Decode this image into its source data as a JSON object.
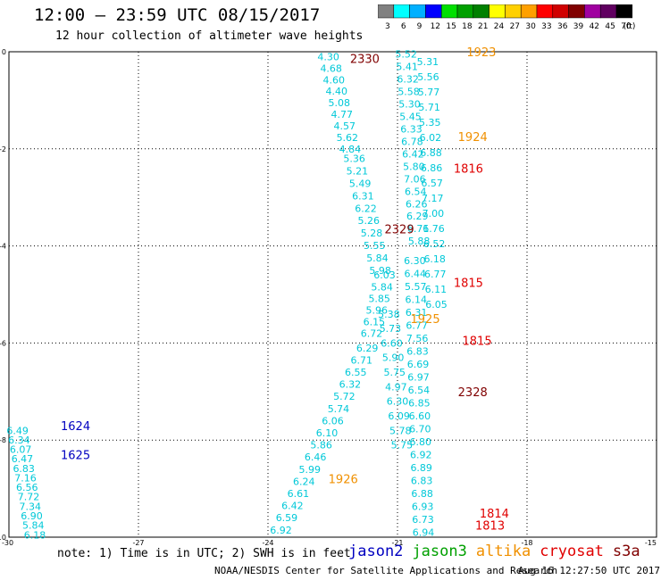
{
  "header": {
    "title": "12:00 – 23:59 UTC 08/15/2017",
    "subtitle": "12 hour collection of altimeter wave heights"
  },
  "colorbar": {
    "unit": "(ft)",
    "bins": [
      {
        "label": "3",
        "color": "#808080"
      },
      {
        "label": "6",
        "color": "#00ffff"
      },
      {
        "label": "9",
        "color": "#00b0ff"
      },
      {
        "label": "12",
        "color": "#0000ff"
      },
      {
        "label": "15",
        "color": "#00e000"
      },
      {
        "label": "18",
        "color": "#00a000"
      },
      {
        "label": "21",
        "color": "#008000"
      },
      {
        "label": "24",
        "color": "#ffff00"
      },
      {
        "label": "27",
        "color": "#ffd000"
      },
      {
        "label": "30",
        "color": "#ffa000"
      },
      {
        "label": "33",
        "color": "#ff0000"
      },
      {
        "label": "36",
        "color": "#d00000"
      },
      {
        "label": "39",
        "color": "#800000"
      },
      {
        "label": "42",
        "color": "#a000a0"
      },
      {
        "label": "45",
        "color": "#600060"
      },
      {
        "label": "70",
        "color": "#000000"
      }
    ]
  },
  "chart_data": {
    "type": "scatter",
    "xlim": [
      -30,
      -15
    ],
    "ylim": [
      -10,
      0
    ],
    "x_ticks": [
      "-30",
      "-27",
      "-24",
      "-21",
      "-18",
      "-15"
    ],
    "y_ticks": [
      "0",
      "-2",
      "-4",
      "-6",
      "-8",
      "-10"
    ],
    "grid": true,
    "colors": {
      "cyan": "#00c8d8",
      "blue": "#0000c0",
      "orange": "#f09000",
      "red": "#e00000",
      "darkred": "#800000"
    },
    "tracks": [
      {
        "series": "jason2",
        "color": "cyan",
        "x0": -29.8,
        "x1": -29.4,
        "y0": -7.8,
        "y1": -9.95,
        "values": [
          "6.49",
          "6.34",
          "6.07",
          "6.47",
          "6.83",
          "7.16",
          "6.56",
          "7.72",
          "7.34",
          "6.90",
          "5.84",
          "6.18"
        ]
      },
      {
        "series": "s3a",
        "color": "cyan",
        "x0": -22.6,
        "x1": -22.1,
        "y0": -0.1,
        "y1": -2.0,
        "values": [
          "4.30",
          "4.68",
          "4.60",
          "4.40",
          "5.08",
          "4.77",
          "4.57",
          "5.62",
          "4.84"
        ]
      },
      {
        "series": "s3a",
        "color": "cyan",
        "x0": -22.0,
        "x1": -21.4,
        "y0": -2.2,
        "y1": -4.5,
        "values": [
          "5.36",
          "5.21",
          "5.49",
          "6.31",
          "6.22",
          "5.26",
          "5.28",
          "5.55",
          "5.84",
          "5.98"
        ]
      },
      {
        "series": "s3a",
        "color": "cyan",
        "x0": -21.3,
        "x1": -21.6,
        "y0": -4.6,
        "y1": -5.8,
        "values": [
          "6.03",
          "5.84",
          "5.85",
          "5.96",
          "6.15",
          "6.72"
        ]
      },
      {
        "series": "altika",
        "color": "cyan",
        "x0": -21.7,
        "x1": -23.7,
        "y0": -6.1,
        "y1": -9.85,
        "values": [
          "6.29",
          "6.71",
          "6.55",
          "6.32",
          "5.72",
          "5.74",
          "6.06",
          "6.10",
          "5.86",
          "6.46",
          "5.99",
          "6.24",
          "6.61",
          "6.42",
          "6.59",
          "6.92"
        ]
      },
      {
        "series": "s3a",
        "color": "cyan",
        "x0": -20.8,
        "x1": -20.5,
        "y0": -0.05,
        "y1": -3.9,
        "values": [
          "5.52",
          "5.41",
          "6.32",
          "5.58",
          "5.30",
          "5.45",
          "6.33",
          "6.78",
          "6.42",
          "5.80",
          "7.06",
          "6.54",
          "6.26",
          "6.29",
          "6.71",
          "5.88"
        ]
      },
      {
        "series": "cryosat",
        "color": "cyan",
        "x0": -20.3,
        "x1": -20.1,
        "y0": -0.2,
        "y1": -5.2,
        "values": [
          "5.31",
          "5.56",
          "5.77",
          "5.71",
          "5.35",
          "6.02",
          "6.88",
          "6.86",
          "6.57",
          "7.17",
          "7.00",
          "6.76",
          "6.52",
          "6.18",
          "6.77",
          "6.11",
          "6.05"
        ]
      },
      {
        "series": "jason3",
        "color": "cyan",
        "x0": -20.6,
        "x1": -20.4,
        "y0": -4.3,
        "y1": -9.9,
        "values": [
          "6.30",
          "6.44",
          "5.57",
          "6.14",
          "6.31",
          "6.77",
          "7.56",
          "6.83",
          "6.69",
          "6.97",
          "6.54",
          "6.85",
          "6.60",
          "6.70",
          "6.80",
          "6.92",
          "6.89",
          "6.83",
          "6.88",
          "6.93",
          "6.73",
          "6.94"
        ]
      },
      {
        "series": "jason3",
        "color": "cyan",
        "x0": -21.2,
        "x1": -20.9,
        "y0": -5.4,
        "y1": -8.1,
        "values": [
          "5.38",
          "5.73",
          "6.60",
          "5.90",
          "5.75",
          "4.97",
          "6.30",
          "6.09",
          "5.78",
          "5.75"
        ]
      }
    ],
    "pass_times": [
      {
        "label": "2330",
        "x": -22.1,
        "y": -0.14,
        "color": "darkred"
      },
      {
        "label": "1923",
        "x": -19.4,
        "y": 0.0,
        "color": "orange"
      },
      {
        "label": "1924",
        "x": -19.6,
        "y": -1.75,
        "color": "orange"
      },
      {
        "label": "1816",
        "x": -19.7,
        "y": -2.4,
        "color": "red"
      },
      {
        "label": "2329",
        "x": -21.3,
        "y": -3.65,
        "color": "darkred"
      },
      {
        "label": "1815",
        "x": -19.7,
        "y": -4.75,
        "color": "red"
      },
      {
        "label": "1925",
        "x": -20.7,
        "y": -5.5,
        "color": "orange"
      },
      {
        "label": "1815",
        "x": -19.5,
        "y": -5.95,
        "color": "red"
      },
      {
        "label": "2328",
        "x": -19.6,
        "y": -7.0,
        "color": "darkred"
      },
      {
        "label": "1624",
        "x": -28.8,
        "y": -7.7,
        "color": "blue"
      },
      {
        "label": "1625",
        "x": -28.8,
        "y": -8.3,
        "color": "blue"
      },
      {
        "label": "1926",
        "x": -22.6,
        "y": -8.8,
        "color": "orange"
      },
      {
        "label": "1814",
        "x": -19.1,
        "y": -9.5,
        "color": "red"
      },
      {
        "label": "1813",
        "x": -19.2,
        "y": -9.75,
        "color": "red"
      }
    ]
  },
  "footer": {
    "note": "note: 1) Time is in UTC; 2) SWH is in feet",
    "legend": [
      {
        "name": "jason2",
        "color": "#0000c0"
      },
      {
        "name": "jason3",
        "color": "#00a000"
      },
      {
        "name": "altika",
        "color": "#f09000"
      },
      {
        "name": "cryosat",
        "color": "#e00000"
      },
      {
        "name": "s3a",
        "color": "#800000"
      }
    ],
    "credit": "NOAA/NESDIS Center for Satellite Applications and Research",
    "timestamp": "Aug 16 12:27:50 UTC 2017"
  }
}
